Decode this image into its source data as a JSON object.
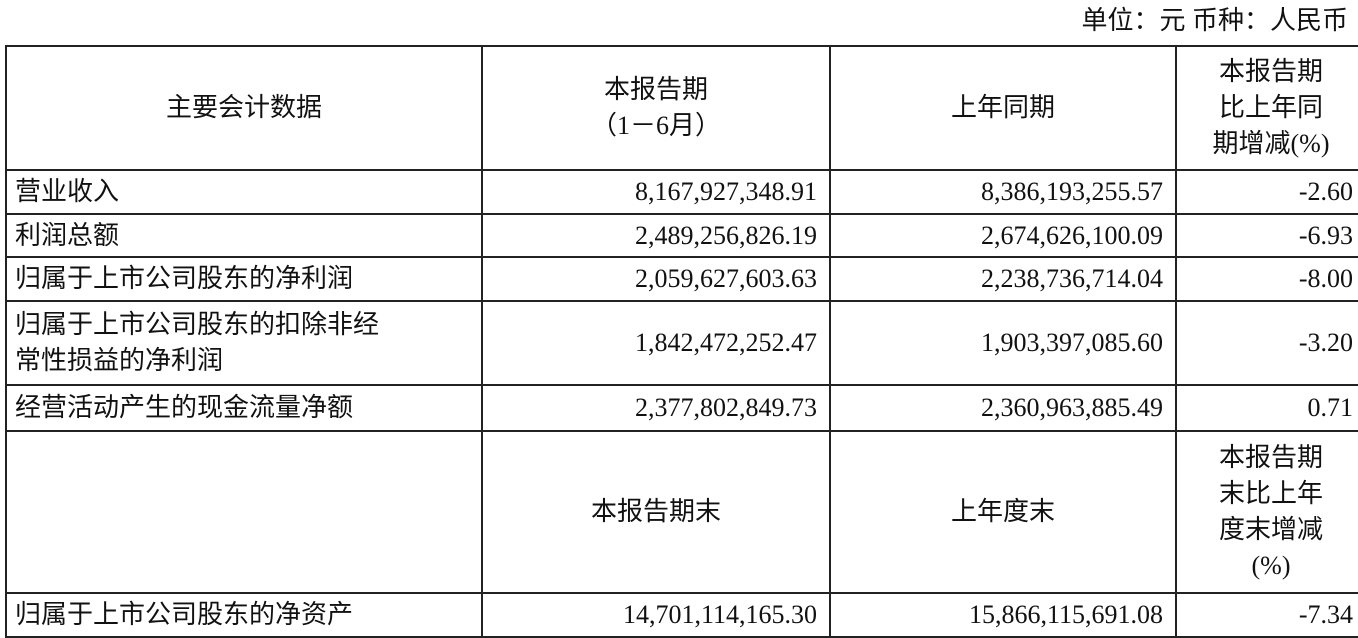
{
  "unit_note": "单位：元  币种：人民币",
  "header1": {
    "col1": "主要会计数据",
    "col2_line1": "本报告期",
    "col2_line2": "（1－6月）",
    "col3": "上年同期",
    "col4_line1": "本报告期",
    "col4_line2": "比上年同",
    "col4_line3": "期增减(%)"
  },
  "rows1": [
    {
      "label": "营业收入",
      "current": "8,167,927,348.91",
      "prior": "8,386,193,255.57",
      "change": "-2.60"
    },
    {
      "label": "利润总额",
      "current": "2,489,256,826.19",
      "prior": "2,674,626,100.09",
      "change": "-6.93"
    },
    {
      "label": "归属于上市公司股东的净利润",
      "current": "2,059,627,603.63",
      "prior": "2,238,736,714.04",
      "change": "-8.00"
    },
    {
      "label_line1": "归属于上市公司股东的扣除非经",
      "label_line2": "常性损益的净利润",
      "current": "1,842,472,252.47",
      "prior": "1,903,397,085.60",
      "change": "-3.20"
    },
    {
      "label": "经营活动产生的现金流量净额",
      "current": "2,377,802,849.73",
      "prior": "2,360,963,885.49",
      "change": "0.71"
    }
  ],
  "header2": {
    "col1": "",
    "col2": "本报告期末",
    "col3": "上年度末",
    "col4_line1": "本报告期",
    "col4_line2": "末比上年",
    "col4_line3": "度末增减",
    "col4_line4": "(%)"
  },
  "rows2": [
    {
      "label": "归属于上市公司股东的净资产",
      "current": "14,701,114,165.30",
      "prior": "15,866,115,691.08",
      "change": "-7.34"
    }
  ]
}
